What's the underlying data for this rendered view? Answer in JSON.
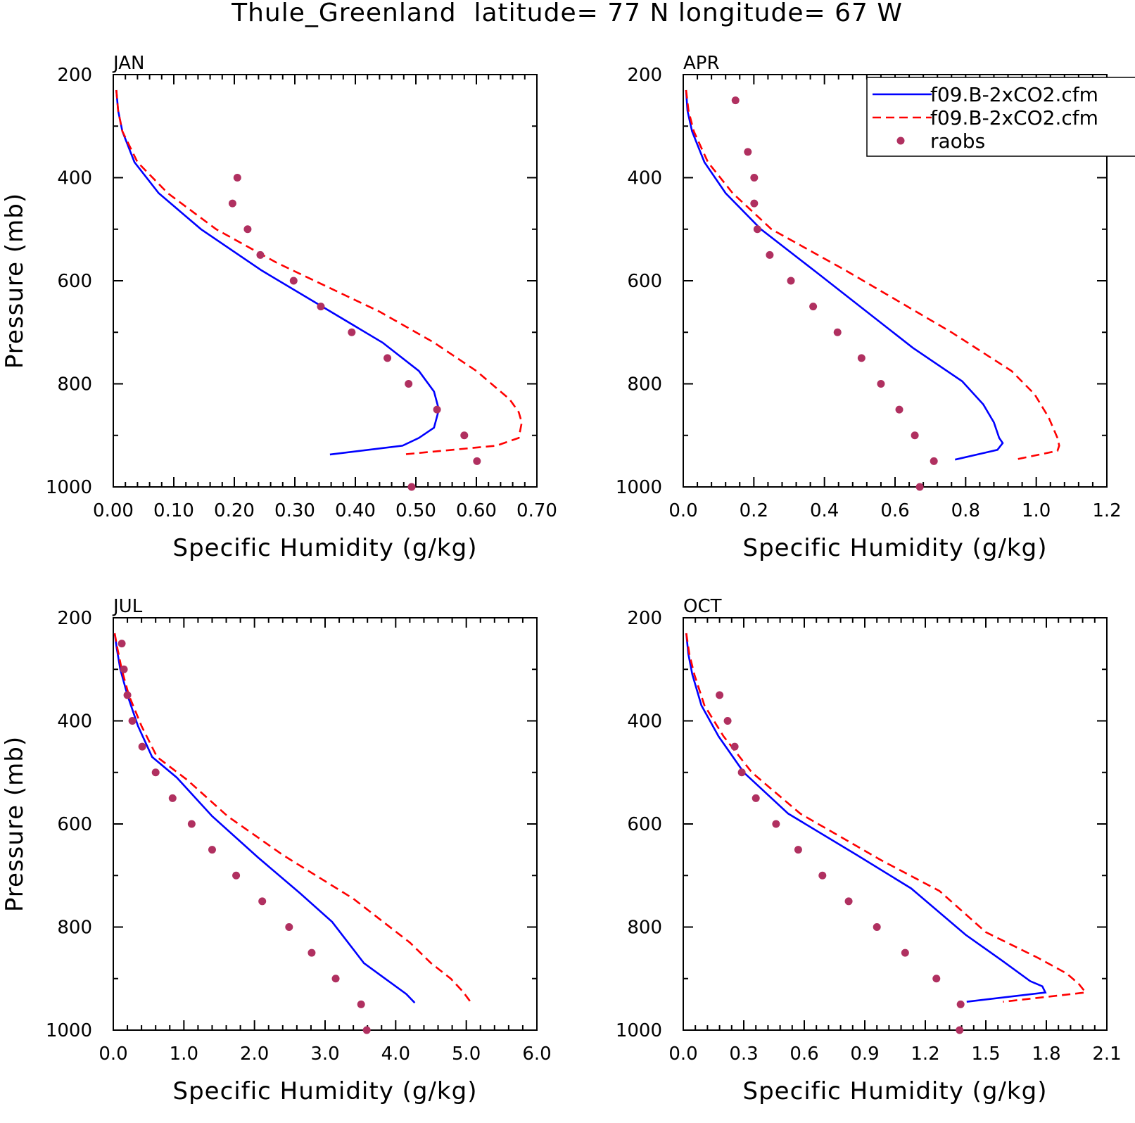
{
  "figure": {
    "title": "Thule_Greenland  latitude= 77 N longitude= 67 W"
  },
  "legend": {
    "entries": [
      {
        "label": "f09.B-2xCO2.cfm",
        "style": "solid",
        "color": "#0000ff"
      },
      {
        "label": "f09.B-2xCO2.cfm",
        "style": "dashed",
        "color": "#ff0000"
      },
      {
        "label": "raobs",
        "style": "dots",
        "color": "#b03060"
      }
    ]
  },
  "chart_data": [
    {
      "type": "line",
      "panel": "JAN",
      "xlabel": "Specific Humidity (g/kg)",
      "ylabel": "Pressure (mb)",
      "xlim": [
        0,
        0.7
      ],
      "ylim": [
        1000,
        200
      ],
      "xticks": [
        "0.00",
        "0.10",
        "0.20",
        "0.30",
        "0.40",
        "0.50",
        "0.60",
        "0.70"
      ],
      "yticks": [
        "200",
        "400",
        "600",
        "800",
        "1000"
      ],
      "series": [
        {
          "style": "solid",
          "color": "#0000ff",
          "x": [
            0.005,
            0.008,
            0.015,
            0.035,
            0.075,
            0.145,
            0.245,
            0.445,
            0.505,
            0.53,
            0.538,
            0.53,
            0.505,
            0.478,
            0.358
          ],
          "y": [
            230,
            270,
            310,
            370,
            430,
            500,
            580,
            720,
            775,
            815,
            850,
            885,
            905,
            920,
            937
          ]
        },
        {
          "style": "dashed",
          "color": "#ff0000",
          "x": [
            0.005,
            0.008,
            0.015,
            0.04,
            0.09,
            0.17,
            0.27,
            0.44,
            0.53,
            0.6,
            0.655,
            0.67,
            0.675,
            0.67,
            0.633,
            0.479
          ],
          "y": [
            230,
            270,
            310,
            370,
            430,
            500,
            565,
            660,
            720,
            775,
            830,
            855,
            875,
            905,
            920,
            937
          ]
        },
        {
          "style": "dots",
          "color": "#b03060",
          "x": [
            0.205,
            0.197,
            0.222,
            0.243,
            0.298,
            0.343,
            0.394,
            0.453,
            0.488,
            0.535,
            0.58,
            0.601,
            0.493
          ],
          "y": [
            400,
            450,
            500,
            550,
            600,
            650,
            700,
            750,
            800,
            850,
            900,
            950,
            1000
          ]
        }
      ]
    },
    {
      "type": "line",
      "panel": "APR",
      "xlabel": "Specific Humidity (g/kg)",
      "ylabel": "",
      "xlim": [
        0,
        1.2
      ],
      "ylim": [
        1000,
        200
      ],
      "xticks": [
        "0.0",
        "0.2",
        "0.4",
        "0.6",
        "0.8",
        "1.0",
        "1.2"
      ],
      "yticks": [
        "200",
        "400",
        "600",
        "800",
        "1000"
      ],
      "series": [
        {
          "style": "solid",
          "color": "#0000ff",
          "x": [
            0.008,
            0.012,
            0.025,
            0.06,
            0.12,
            0.22,
            0.38,
            0.65,
            0.79,
            0.85,
            0.88,
            0.895,
            0.905,
            0.89,
            0.77
          ],
          "y": [
            230,
            270,
            310,
            370,
            430,
            500,
            585,
            730,
            795,
            840,
            875,
            905,
            915,
            928,
            947
          ]
        },
        {
          "style": "dashed",
          "color": "#ff0000",
          "x": [
            0.008,
            0.015,
            0.03,
            0.07,
            0.14,
            0.25,
            0.46,
            0.76,
            0.93,
            0.995,
            1.035,
            1.06,
            1.065,
            1.06,
            0.94
          ],
          "y": [
            230,
            270,
            310,
            370,
            430,
            500,
            580,
            700,
            775,
            820,
            865,
            905,
            920,
            930,
            947
          ]
        },
        {
          "style": "dots",
          "color": "#b03060",
          "x": [
            0.148,
            0.183,
            0.201,
            0.201,
            0.21,
            0.245,
            0.305,
            0.368,
            0.437,
            0.505,
            0.56,
            0.612,
            0.656,
            0.71,
            0.67
          ],
          "y": [
            250,
            350,
            400,
            450,
            500,
            550,
            600,
            650,
            700,
            750,
            800,
            850,
            900,
            950,
            1000
          ]
        }
      ]
    },
    {
      "type": "line",
      "panel": "JUL",
      "xlabel": "Specific Humidity (g/kg)",
      "ylabel": "Pressure (mb)",
      "xlim": [
        0,
        6
      ],
      "ylim": [
        1000,
        200
      ],
      "xticks": [
        "0.0",
        "1.0",
        "2.0",
        "3.0",
        "4.0",
        "5.0",
        "6.0"
      ],
      "yticks": [
        "200",
        "400",
        "600",
        "800",
        "1000"
      ],
      "series": [
        {
          "style": "solid",
          "color": "#0000ff",
          "x": [
            0.02,
            0.05,
            0.1,
            0.2,
            0.35,
            0.55,
            0.9,
            1.4,
            2.05,
            2.65,
            3.1,
            3.55,
            3.85,
            4.15,
            4.27
          ],
          "y": [
            230,
            260,
            300,
            350,
            410,
            470,
            510,
            585,
            665,
            735,
            790,
            870,
            900,
            930,
            947
          ]
        },
        {
          "style": "dashed",
          "color": "#ff0000",
          "x": [
            0.02,
            0.06,
            0.12,
            0.22,
            0.4,
            0.62,
            1.05,
            1.62,
            2.4,
            3.4,
            4.2,
            4.5,
            4.78,
            4.95,
            5.07
          ],
          "y": [
            230,
            260,
            300,
            350,
            410,
            470,
            515,
            585,
            660,
            745,
            830,
            870,
            900,
            925,
            947
          ]
        },
        {
          "style": "dots",
          "color": "#b03060",
          "x": [
            0.12,
            0.15,
            0.2,
            0.27,
            0.41,
            0.6,
            0.84,
            1.11,
            1.4,
            1.74,
            2.11,
            2.49,
            2.81,
            3.15,
            3.51,
            3.59
          ],
          "y": [
            250,
            300,
            350,
            400,
            450,
            500,
            550,
            600,
            650,
            700,
            750,
            800,
            850,
            900,
            950,
            1000
          ]
        }
      ]
    },
    {
      "type": "line",
      "panel": "OCT",
      "xlabel": "Specific Humidity (g/kg)",
      "ylabel": "",
      "xlim": [
        0,
        2.1
      ],
      "ylim": [
        1000,
        200
      ],
      "xticks": [
        "0.0",
        "0.3",
        "0.6",
        "0.9",
        "1.2",
        "1.5",
        "1.8",
        "2.1"
      ],
      "yticks": [
        "200",
        "400",
        "600",
        "800",
        "1000"
      ],
      "series": [
        {
          "style": "solid",
          "color": "#0000ff",
          "x": [
            0.015,
            0.025,
            0.045,
            0.09,
            0.175,
            0.3,
            0.52,
            0.86,
            1.13,
            1.4,
            1.58,
            1.72,
            1.78,
            1.795,
            1.405
          ],
          "y": [
            230,
            270,
            310,
            370,
            430,
            500,
            580,
            660,
            725,
            815,
            865,
            905,
            915,
            927,
            945
          ]
        },
        {
          "style": "dashed",
          "color": "#ff0000",
          "x": [
            0.015,
            0.03,
            0.055,
            0.105,
            0.2,
            0.34,
            0.58,
            0.98,
            1.27,
            1.5,
            1.76,
            1.9,
            1.96,
            1.995,
            1.585
          ],
          "y": [
            230,
            270,
            310,
            370,
            430,
            500,
            580,
            670,
            730,
            810,
            860,
            890,
            910,
            927,
            945
          ]
        },
        {
          "style": "dots",
          "color": "#b03060",
          "x": [
            0.18,
            0.22,
            0.255,
            0.29,
            0.36,
            0.46,
            0.57,
            0.69,
            0.82,
            0.96,
            1.1,
            1.255,
            1.375,
            1.37
          ],
          "y": [
            350,
            400,
            450,
            500,
            550,
            600,
            650,
            700,
            750,
            800,
            850,
            900,
            950,
            1000
          ]
        }
      ]
    }
  ]
}
